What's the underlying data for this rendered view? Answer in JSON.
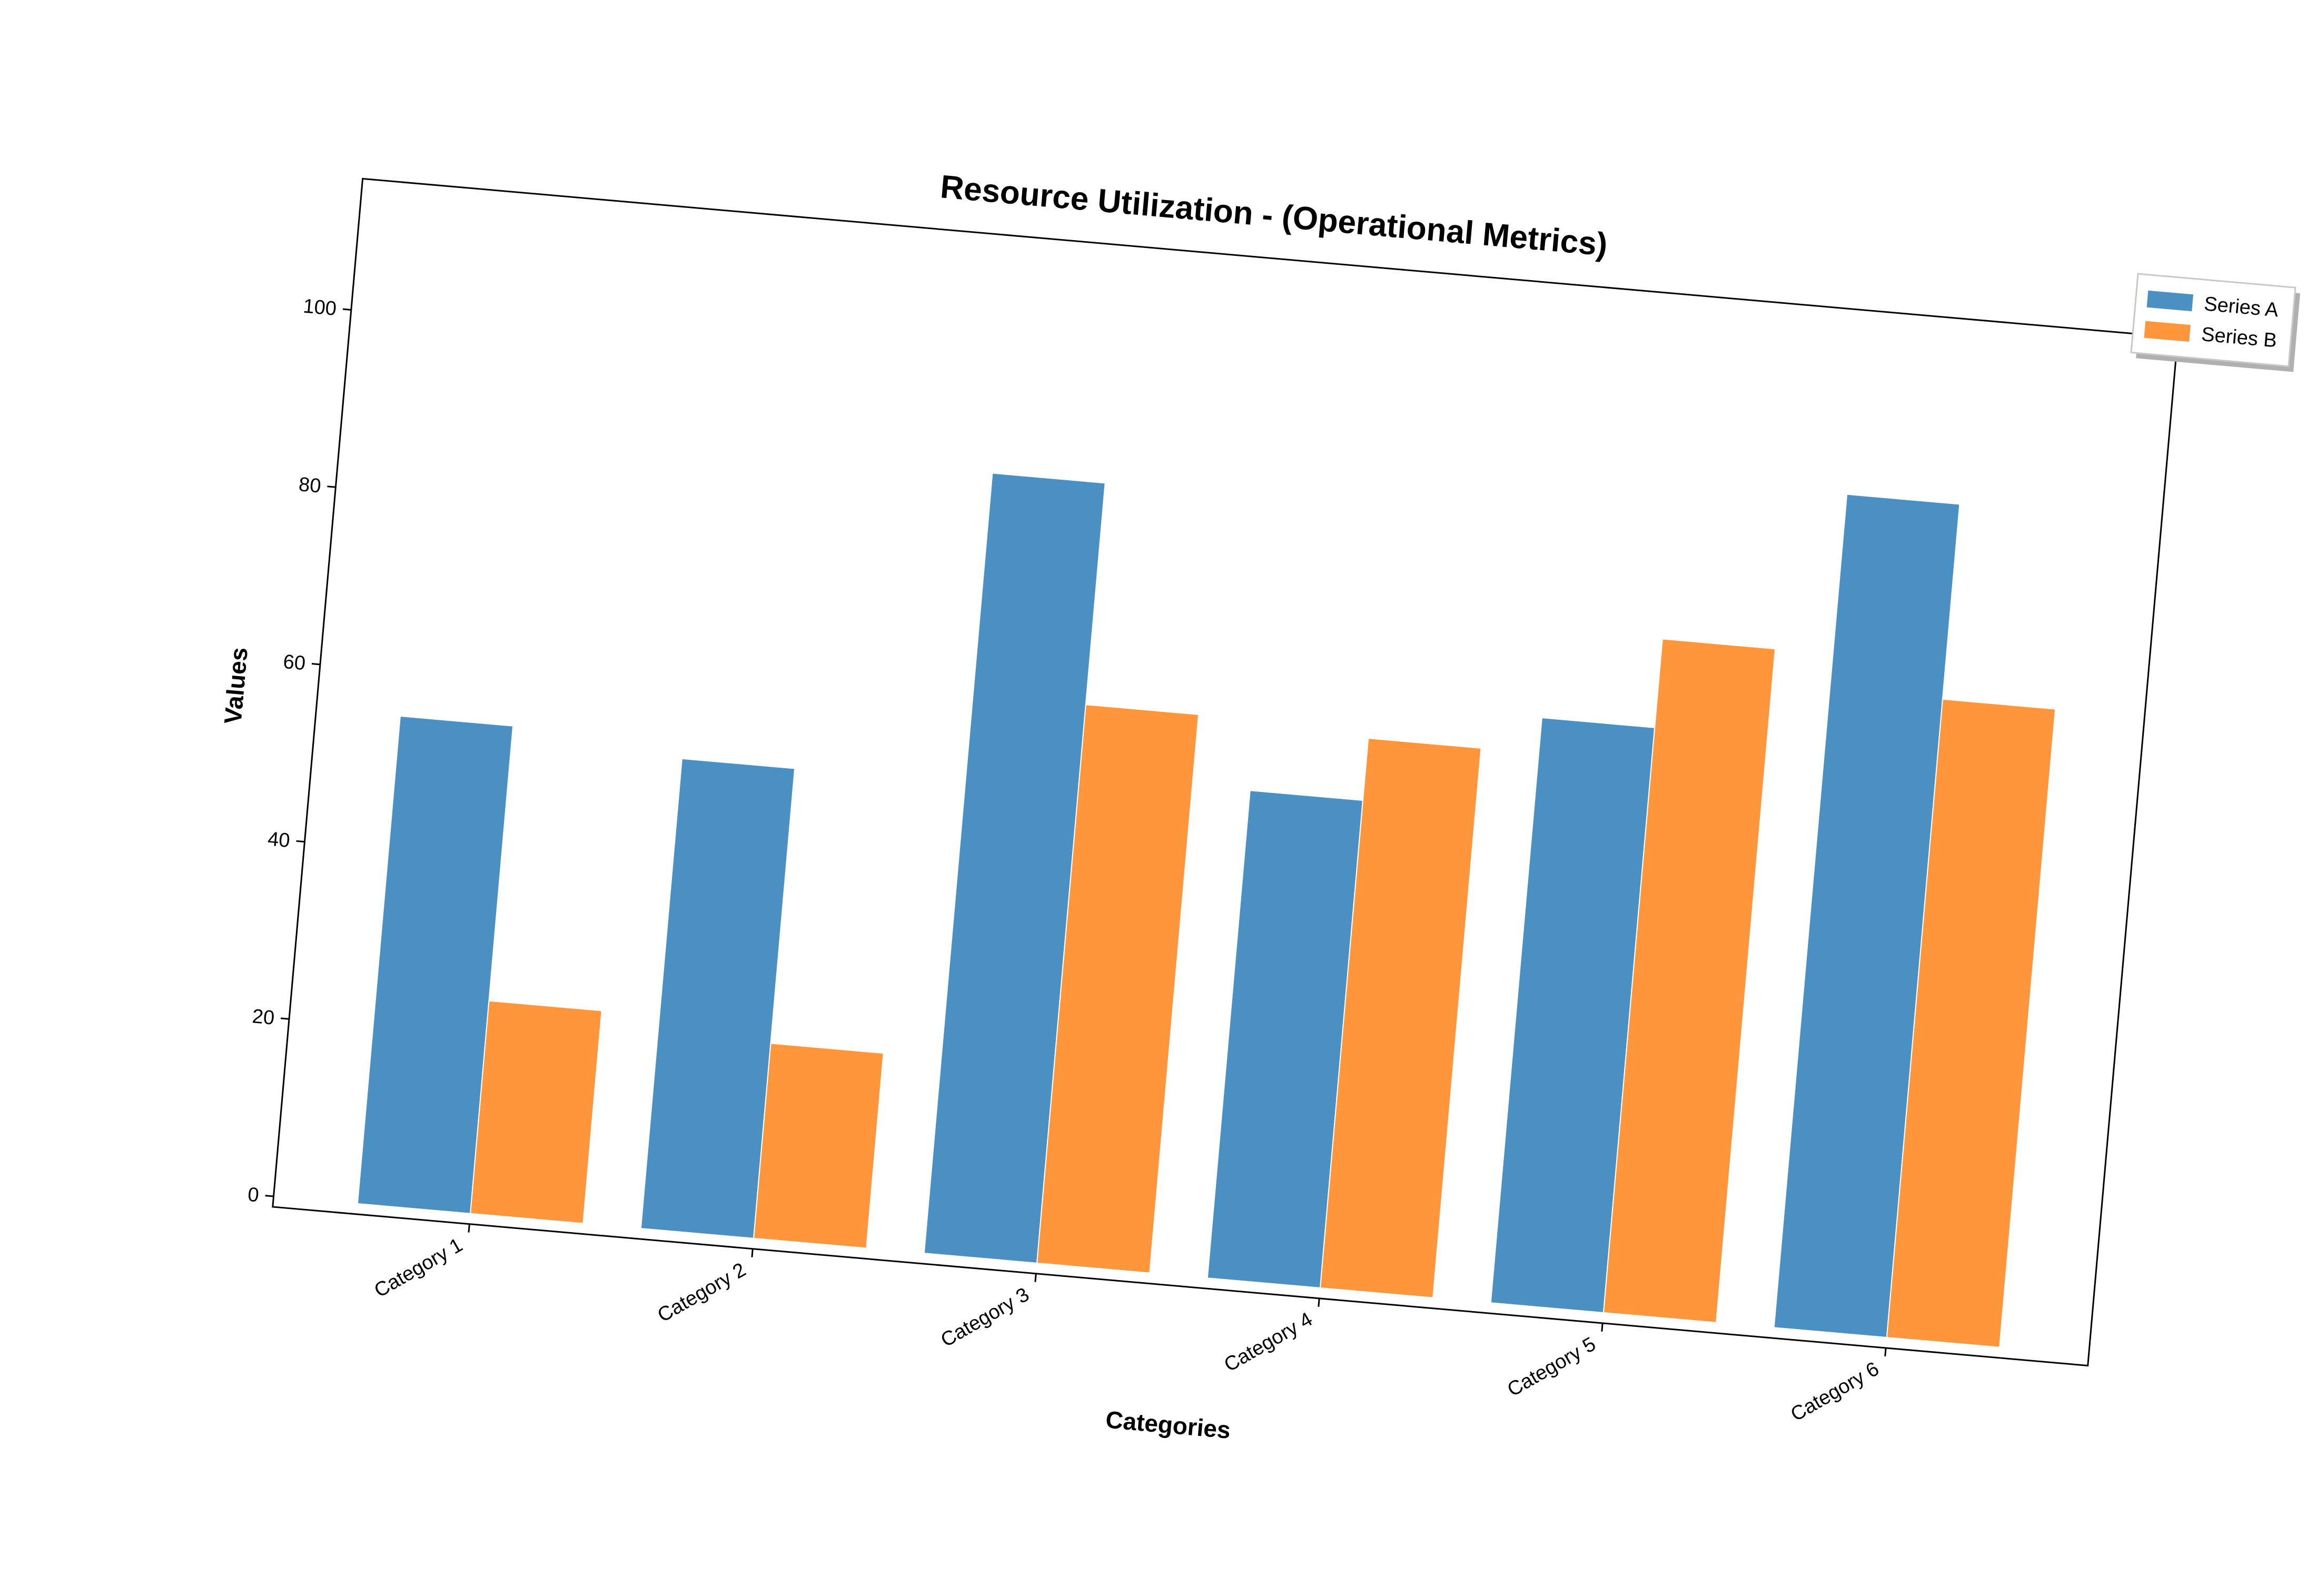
{
  "chart_data": {
    "type": "bar",
    "title": "Resource Utilization - (Operational Metrics)",
    "xlabel": "Categories",
    "ylabel": "Values",
    "categories": [
      "Category 1",
      "Category 2",
      "Category 3",
      "Category 4",
      "Category 5",
      "Category 6"
    ],
    "series": [
      {
        "name": "Series A",
        "color": "#4a90c2",
        "values": [
          55,
          53,
          88,
          55,
          66,
          94
        ]
      },
      {
        "name": "Series B",
        "color": "#ff963c",
        "values": [
          24,
          22,
          63,
          62,
          76,
          72
        ]
      }
    ],
    "ylim": [
      0,
      100
    ],
    "yticks": [
      0,
      20,
      40,
      60,
      80,
      100
    ],
    "grid": false,
    "legend_position": "right",
    "rotation_degrees": 5
  }
}
